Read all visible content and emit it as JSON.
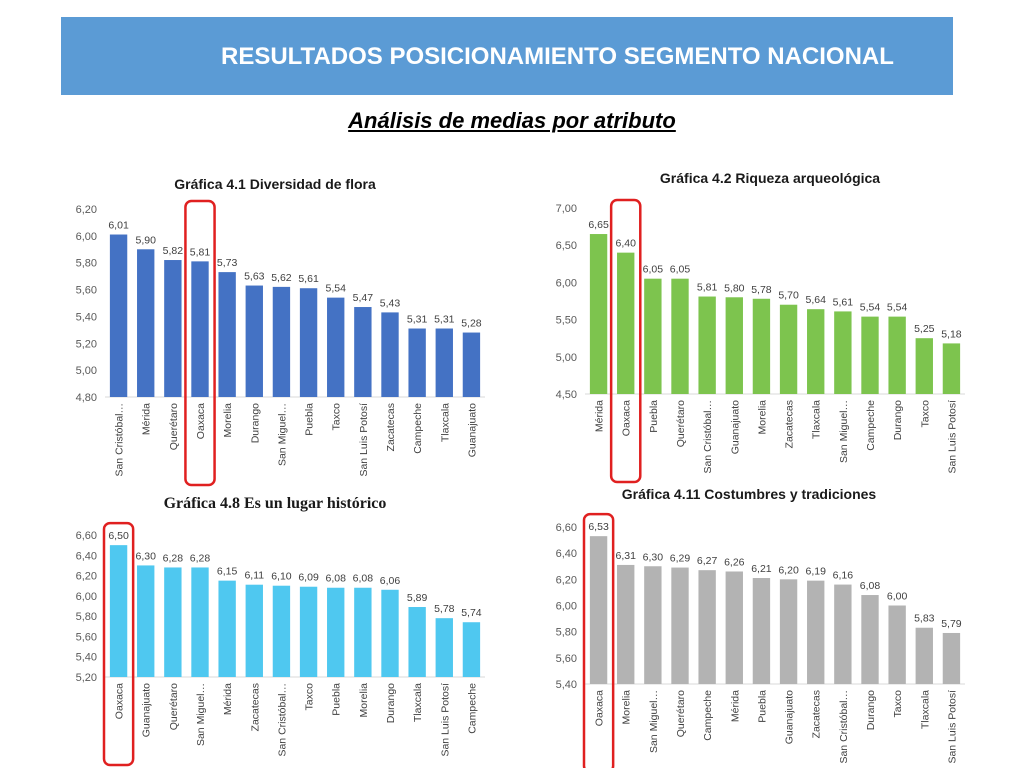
{
  "header": {
    "title": "RESULTADOS POSICIONAMIENTO SEGMENTO NACIONAL"
  },
  "subtitle": "Análisis de medias por atributo",
  "colors": {
    "banner": "#5b9bd5",
    "highlight": "#e02020"
  },
  "chart_data": [
    {
      "type": "bar",
      "title": "Gráfica 4.1 Diversidad de flora",
      "categories": [
        "San Cristóbal…",
        "Mérida",
        "Querétaro",
        "Oaxaca",
        "Morelia",
        "Durango",
        "San Miguel…",
        "Puebla",
        "Taxco",
        "San Luis Potosí",
        "Zacatecas",
        "Campeche",
        "Tlaxcala",
        "Guanajuato"
      ],
      "values": [
        6.01,
        5.9,
        5.82,
        5.81,
        5.73,
        5.63,
        5.62,
        5.61,
        5.54,
        5.47,
        5.43,
        5.31,
        5.31,
        5.28
      ],
      "labels": [
        "6,01",
        "5,90",
        "5,82",
        "5,81",
        "5,73",
        "5,63",
        "5,62",
        "5,61",
        "5,54",
        "5,47",
        "5,43",
        "5,31",
        "5,31",
        "5,28"
      ],
      "yticks": [
        "4,80",
        "5,00",
        "5,20",
        "5,40",
        "5,60",
        "5,80",
        "6,00",
        "6,20"
      ],
      "ylim": [
        4.8,
        6.2
      ],
      "color": "#4472c4",
      "highlight": "Oaxaca"
    },
    {
      "type": "bar",
      "title": "Gráfica 4.2 Riqueza arqueológica",
      "categories": [
        "Mérida",
        "Oaxaca",
        "Puebla",
        "Querétaro",
        "San Cristóbal…",
        "Guanajuato",
        "Morelia",
        "Zacatecas",
        "Tlaxcala",
        "San Miguel…",
        "Campeche",
        "Durango",
        "Taxco",
        "San Luis Potosí"
      ],
      "values": [
        6.65,
        6.4,
        6.05,
        6.05,
        5.81,
        5.8,
        5.78,
        5.7,
        5.64,
        5.61,
        5.54,
        5.54,
        5.25,
        5.18
      ],
      "labels": [
        "6,65",
        "6,40",
        "6,05",
        "6,05",
        "5,81",
        "5,80",
        "5,78",
        "5,70",
        "5,64",
        "5,61",
        "5,54",
        "5,54",
        "5,25",
        "5,18"
      ],
      "yticks": [
        "4,50",
        "5,00",
        "5,50",
        "6,00",
        "6,50",
        "7,00"
      ],
      "ylim": [
        4.5,
        7.0
      ],
      "color": "#7dc44e",
      "highlight": "Oaxaca"
    },
    {
      "type": "bar",
      "title": "Gráfica 4.8 Es un lugar histórico",
      "categories": [
        "Oaxaca",
        "Guanajuato",
        "Querétaro",
        "San Miguel…",
        "Mérida",
        "Zacatecas",
        "San Cristóbal…",
        "Taxco",
        "Puebla",
        "Morelia",
        "Durango",
        "Tlaxcala",
        "San Luis Potosí",
        "Campeche"
      ],
      "values": [
        6.5,
        6.3,
        6.28,
        6.28,
        6.15,
        6.11,
        6.1,
        6.09,
        6.08,
        6.08,
        6.06,
        5.89,
        5.78,
        5.74
      ],
      "labels": [
        "6,50",
        "6,30",
        "6,28",
        "6,28",
        "6,15",
        "6,11",
        "6,10",
        "6,09",
        "6,08",
        "6,08",
        "6,06",
        "5,89",
        "5,78",
        "5,74"
      ],
      "yticks": [
        "5,20",
        "5,40",
        "5,60",
        "5,80",
        "6,00",
        "6,20",
        "6,40",
        "6,60"
      ],
      "ylim": [
        5.2,
        6.6
      ],
      "color": "#4fc8f0",
      "highlight": "Oaxaca"
    },
    {
      "type": "bar",
      "title": "Gráfica 4.11 Costumbres y tradiciones",
      "categories": [
        "Oaxaca",
        "Morelia",
        "San Miguel…",
        "Querétaro",
        "Campeche",
        "Mérida",
        "Puebla",
        "Guanajuato",
        "Zacatecas",
        "San Cristóbal…",
        "Durango",
        "Taxco",
        "Tlaxcala",
        "San Luis Potosí"
      ],
      "values": [
        6.53,
        6.31,
        6.3,
        6.29,
        6.27,
        6.26,
        6.21,
        6.2,
        6.19,
        6.16,
        6.08,
        6.0,
        5.83,
        5.79
      ],
      "labels": [
        "6,53",
        "6,31",
        "6,30",
        "6,29",
        "6,27",
        "6,26",
        "6,21",
        "6,20",
        "6,19",
        "6,16",
        "6,08",
        "6,00",
        "5,83",
        "5,79"
      ],
      "yticks": [
        "5,40",
        "5,60",
        "5,80",
        "6,00",
        "6,20",
        "6,40",
        "6,60"
      ],
      "ylim": [
        5.4,
        6.6
      ],
      "color": "#b3b3b3",
      "highlight": "Oaxaca"
    }
  ]
}
